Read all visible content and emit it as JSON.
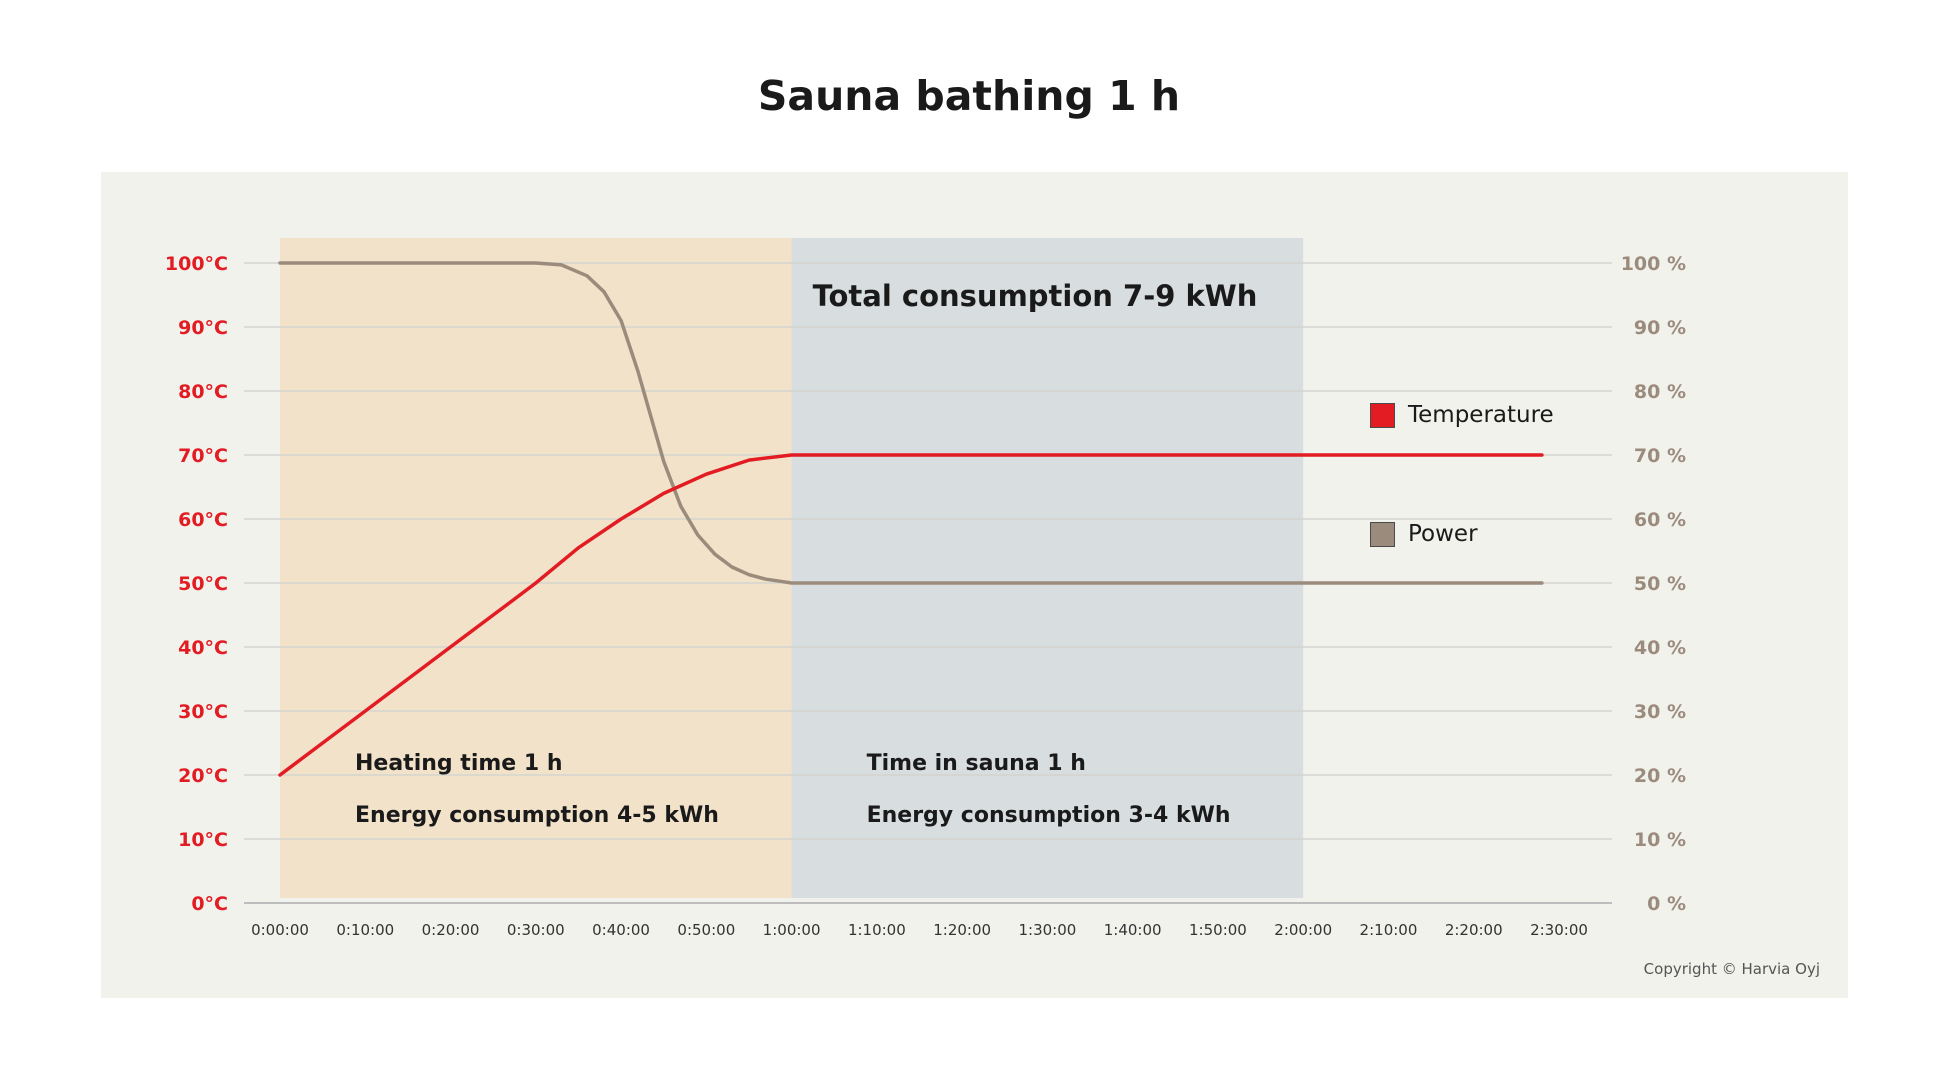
{
  "title": "Sauna bathing 1 h",
  "copyright": "Copyright © Harvia Oyj",
  "colors": {
    "temperature": "#e31b23",
    "power": "#9b8b7c",
    "heating_phase": "#f1e2c9",
    "sauna_phase": "#d8dde0",
    "panel_background": "#f1f2ec",
    "left_axis_text": "#e31b23",
    "right_axis_text": "#9b8b7c"
  },
  "chart_data": {
    "type": "line",
    "x_unit": "minutes",
    "xlim": [
      0,
      150
    ],
    "x_ticks": [
      0,
      10,
      20,
      30,
      40,
      50,
      60,
      70,
      80,
      90,
      100,
      110,
      120,
      130,
      140,
      150
    ],
    "x_tick_labels": [
      "0:00:00",
      "0:10:00",
      "0:20:00",
      "0:30:00",
      "0:40:00",
      "0:50:00",
      "1:00:00",
      "1:10:00",
      "1:20:00",
      "1:30:00",
      "1:40:00",
      "1:50:00",
      "2:00:00",
      "2:10:00",
      "2:20:00",
      "2:30:00"
    ],
    "y_left": {
      "range": [
        0,
        100
      ],
      "tick_labels": [
        "0°C",
        "10°C",
        "20°C",
        "30°C",
        "40°C",
        "50°C",
        "60°C",
        "70°C",
        "80°C",
        "90°C",
        "100°C"
      ]
    },
    "y_right": {
      "range": [
        0,
        100
      ],
      "tick_labels": [
        "0 %",
        "10 %",
        "20 %",
        "30 %",
        "40 %",
        "50 %",
        "60 %",
        "70 %",
        "80 %",
        "90 %",
        "100 %"
      ]
    },
    "grid": true,
    "legend_position": "right",
    "series": [
      {
        "name": "Temperature",
        "color_key": "temperature",
        "axis": "left",
        "x": [
          0,
          5,
          10,
          15,
          20,
          25,
          30,
          35,
          40,
          45,
          50,
          55,
          60,
          65,
          70,
          80,
          90,
          100,
          110,
          120,
          130,
          140,
          148
        ],
        "y": [
          20,
          25,
          30,
          35,
          40,
          45,
          50,
          55.5,
          60,
          64,
          67,
          69.2,
          70,
          70,
          70,
          70,
          70,
          70,
          70,
          70,
          70,
          70,
          70
        ]
      },
      {
        "name": "Power",
        "color_key": "power",
        "axis": "right",
        "x": [
          0,
          10,
          20,
          30,
          33,
          36,
          38,
          40,
          42,
          43.5,
          45,
          47,
          49,
          51,
          53,
          55,
          57,
          59,
          60,
          70,
          80,
          90,
          100,
          110,
          120,
          130,
          140,
          148
        ],
        "y": [
          100,
          100,
          100,
          100,
          99.7,
          98,
          95.5,
          91,
          83,
          76,
          69,
          62,
          57.5,
          54.5,
          52.5,
          51.3,
          50.6,
          50.2,
          50,
          50,
          50,
          50,
          50,
          50,
          50,
          50,
          50,
          50
        ]
      }
    ],
    "regions": [
      {
        "name": "heating",
        "x_start": 0,
        "x_end": 60,
        "color_key": "heating_phase",
        "lines": [
          "Heating time 1 h",
          "Energy consumption 4-5 kWh"
        ]
      },
      {
        "name": "sauna",
        "x_start": 60,
        "x_end": 120,
        "color_key": "sauna_phase",
        "lines": [
          "Time in sauna 1 h",
          "Energy consumption 3-4 kWh"
        ]
      }
    ],
    "annotations": [
      "Total consumption 7-9 kWh"
    ]
  }
}
